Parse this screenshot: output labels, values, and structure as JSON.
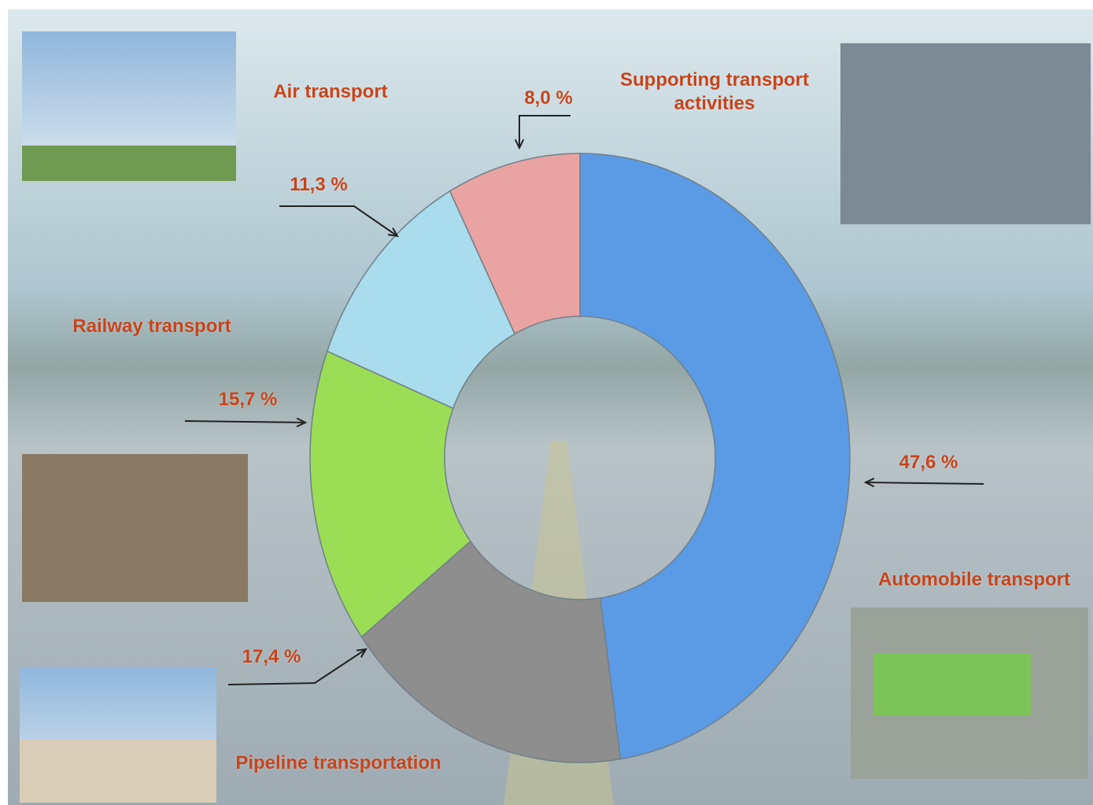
{
  "chart_data": {
    "type": "donut",
    "categories": [
      "Automobile transport",
      "Pipeline transportation",
      "Railway transport",
      "Air transport",
      "Supporting transport activities"
    ],
    "values": [
      47.6,
      17.4,
      15.7,
      11.3,
      8.0
    ],
    "value_labels": [
      "47,6 %",
      "17,4 %",
      "15,7 %",
      "11,3 %",
      "8,0 %"
    ],
    "colors": [
      "#5b9be6",
      "#8e8e8e",
      "#9bdd55",
      "#a9dcec",
      "#e9a3a3"
    ]
  }
}
